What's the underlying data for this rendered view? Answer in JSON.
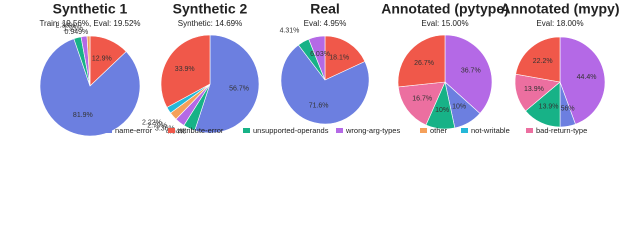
{
  "chart_data": [
    {
      "type": "pie",
      "title": "Synthetic 1",
      "subtitle": "Train: 19.56%, Eval: 19.52%",
      "categories": [
        "attribute-error",
        "name-error",
        "unsupported-operands",
        "wrong-arg-types",
        "other"
      ],
      "values": [
        12.9,
        81.9,
        2.36,
        1.93,
        0.949
      ],
      "value_labels": [
        "12.9%",
        "81.9%",
        "2.36%",
        "1.93%",
        "0.949%"
      ],
      "colors": [
        "#f0584a",
        "#6c7fe0",
        "#17b287",
        "#b469e6",
        "#f5a05a"
      ]
    },
    {
      "type": "pie",
      "title": "Synthetic 2",
      "subtitle": "Synthetic: 14.69%",
      "categories": [
        "name-error",
        "unsupported-operands",
        "wrong-arg-types",
        "other",
        "not-writable",
        "attribute-error"
      ],
      "values": [
        56.7,
        4.04,
        3.36,
        2.79,
        2.22,
        33.9
      ],
      "value_labels": [
        "56.7%",
        "4.04%",
        "3.36%",
        "2.79%",
        "2.22%",
        "33.9%"
      ],
      "colors": [
        "#6c7fe0",
        "#17b287",
        "#b469e6",
        "#f5a05a",
        "#25b8d8",
        "#f0584a"
      ]
    },
    {
      "type": "pie",
      "title": "Real",
      "subtitle": "Eval: 4.95%",
      "categories": [
        "attribute-error",
        "name-error",
        "unsupported-operands",
        "wrong-arg-types"
      ],
      "values": [
        18.1,
        71.6,
        4.31,
        6.03
      ],
      "value_labels": [
        "18.1%",
        "71.6%",
        "4.31%",
        "6.03%"
      ],
      "colors": [
        "#f0584a",
        "#6c7fe0",
        "#17b287",
        "#b469e6"
      ]
    },
    {
      "type": "pie",
      "title": "Annotated (pytype)",
      "subtitle": "Eval: 15.00%",
      "categories": [
        "wrong-arg-types",
        "name-error",
        "unsupported-operands",
        "bad-return-type",
        "attribute-error"
      ],
      "values": [
        36.7,
        10,
        10,
        16.7,
        26.7
      ],
      "value_labels": [
        "36.7%",
        "10%",
        "10%",
        "16.7%",
        "26.7%"
      ],
      "colors": [
        "#b469e6",
        "#6c7fe0",
        "#17b287",
        "#ec6fa0",
        "#f0584a"
      ]
    },
    {
      "type": "pie",
      "title": "Annotated (mypy)",
      "subtitle": "Eval: 18.00%",
      "categories": [
        "wrong-arg-types",
        "name-error",
        "unsupported-operands",
        "bad-return-type",
        "attribute-error"
      ],
      "values": [
        44.4,
        5.56,
        13.9,
        13.9,
        22.2
      ],
      "value_labels": [
        "44.4%",
        "5.56%",
        "13.9%",
        "13.9%",
        "22.2%"
      ],
      "colors": [
        "#b469e6",
        "#6c7fe0",
        "#17b287",
        "#ec6fa0",
        "#f0584a"
      ]
    }
  ],
  "legend": [
    {
      "name": "name-error",
      "color": "#6c7fe0"
    },
    {
      "name": "attribute-error",
      "color": "#f0584a"
    },
    {
      "name": "unsupported-operands",
      "color": "#17b287"
    },
    {
      "name": "wrong-arg-types",
      "color": "#b469e6"
    },
    {
      "name": "other",
      "color": "#f5a05a"
    },
    {
      "name": "not-writable",
      "color": "#25b8d8"
    },
    {
      "name": "bad-return-type",
      "color": "#ec6fa0"
    }
  ]
}
